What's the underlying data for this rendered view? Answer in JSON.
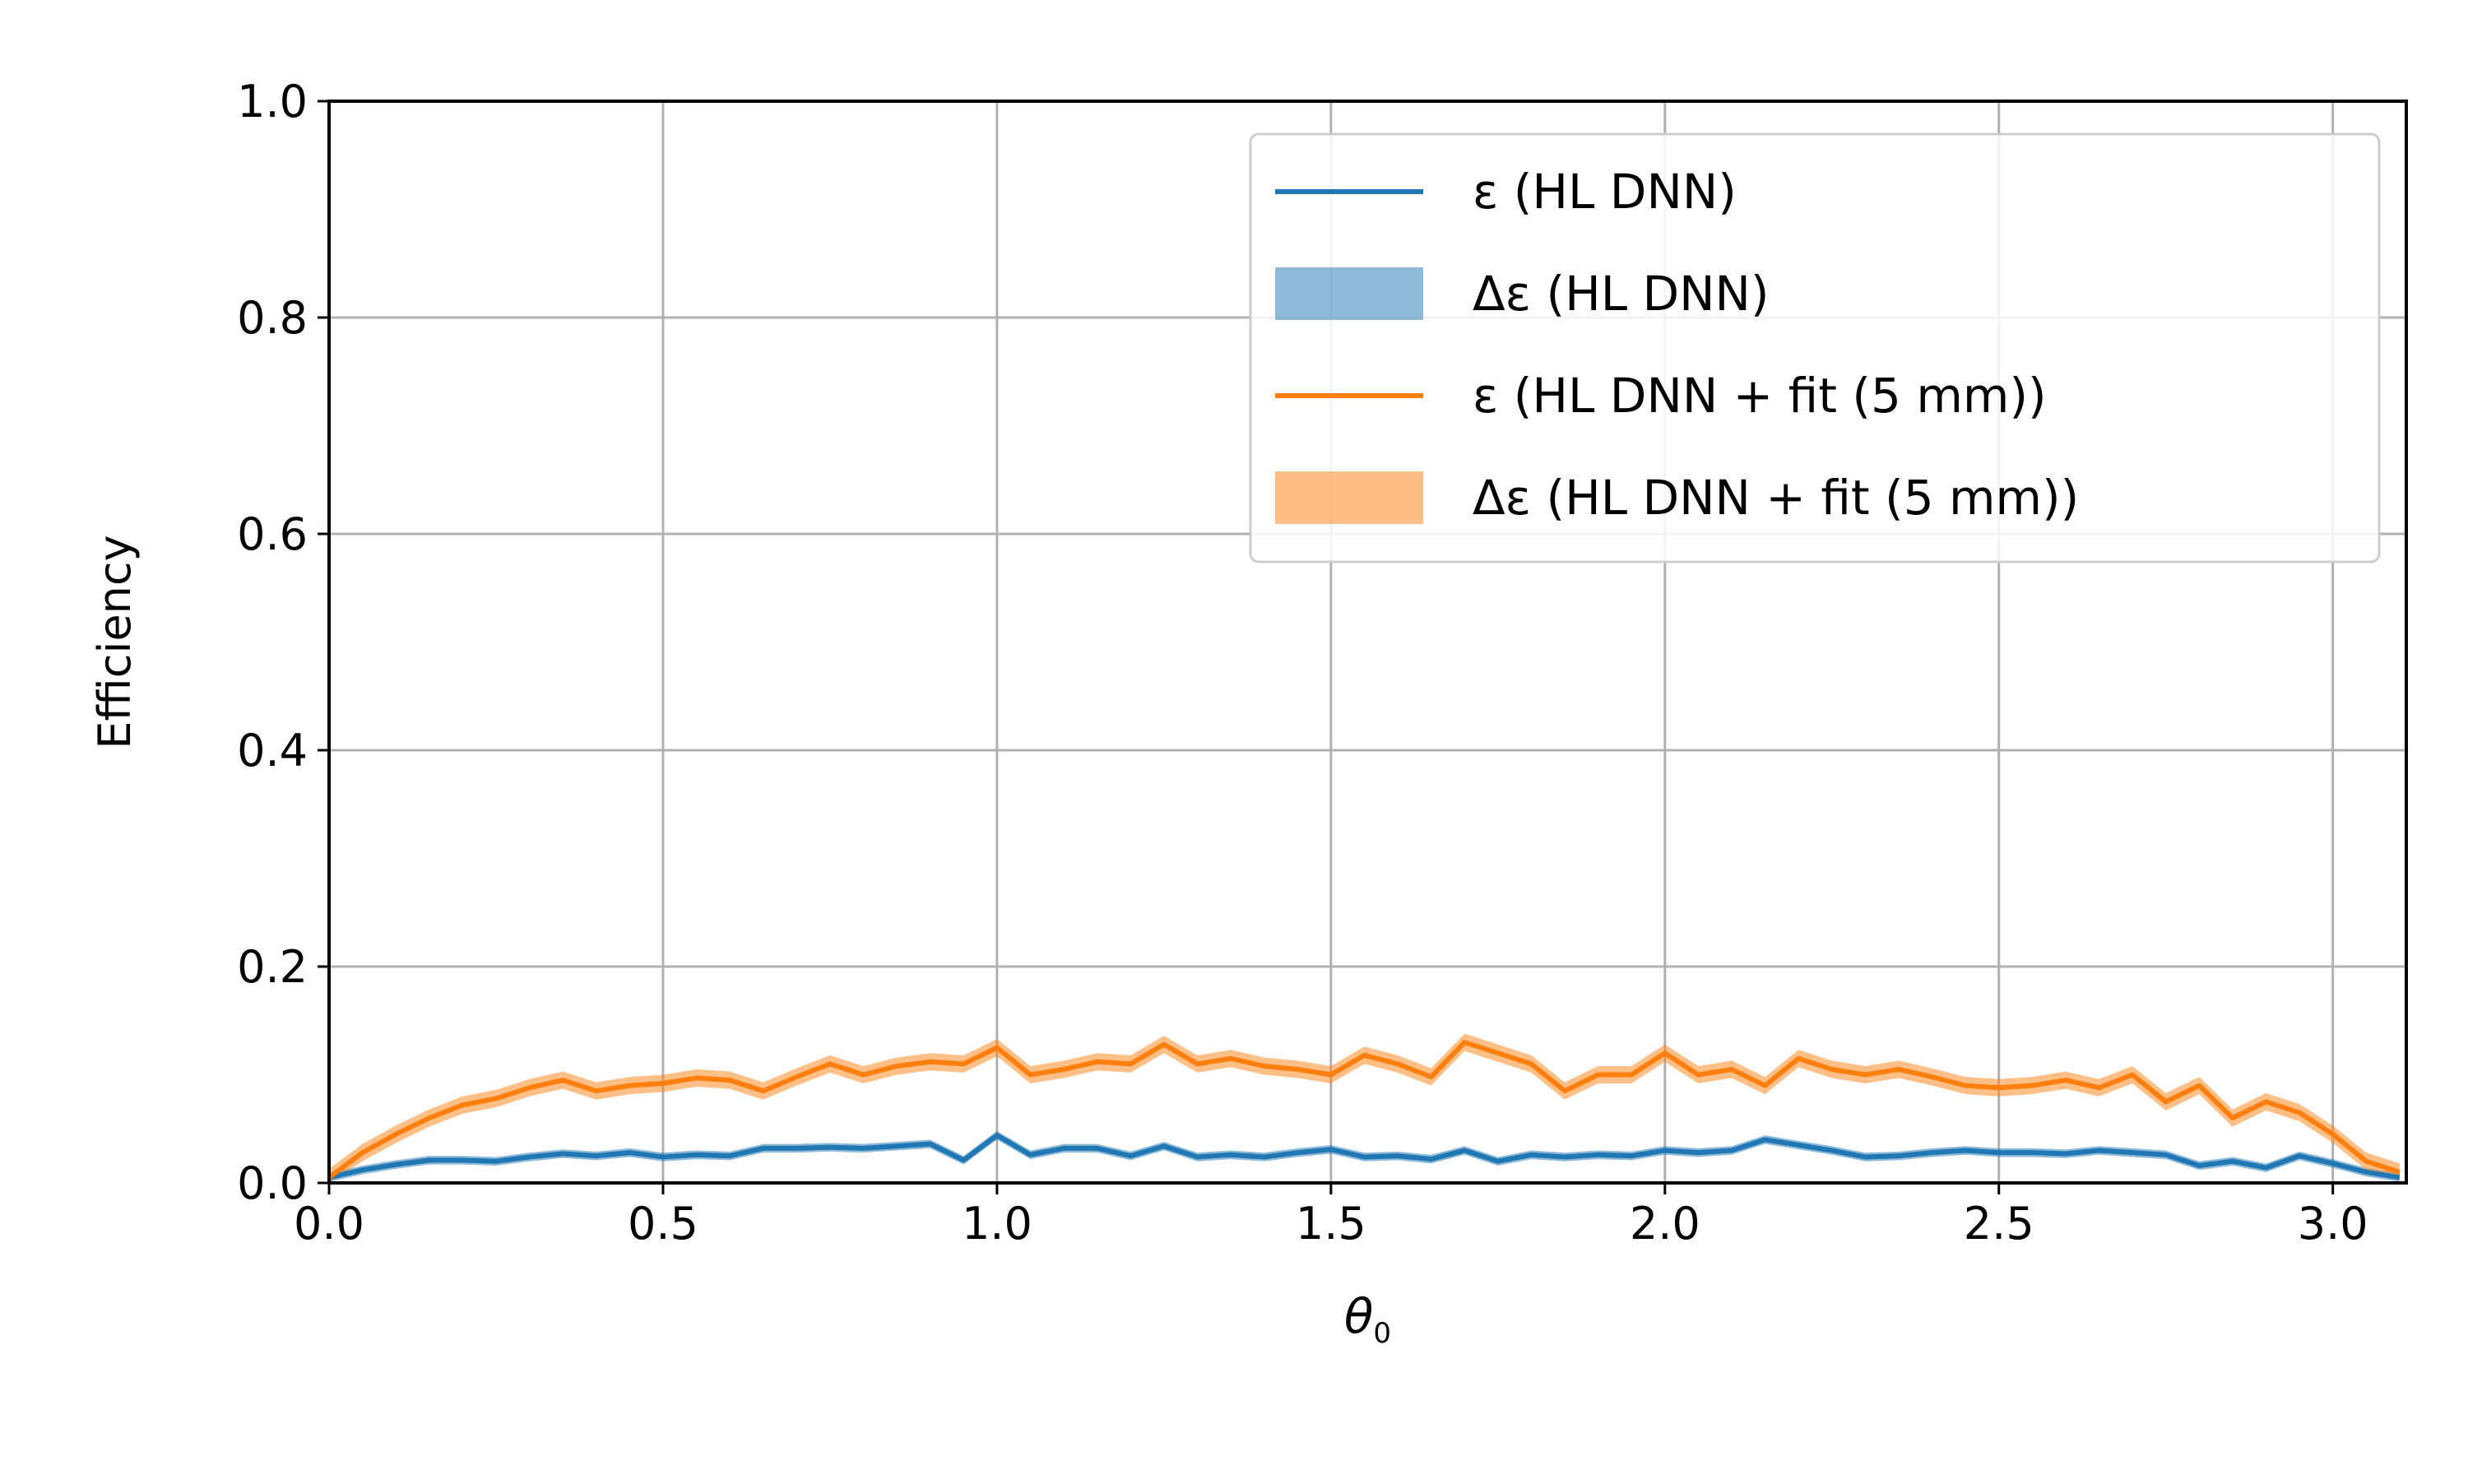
{
  "chart_data": {
    "type": "line",
    "xlabel": "θ",
    "xlabel_sub": "0",
    "ylabel": "Efficiency",
    "xlim": [
      0.0,
      3.11
    ],
    "ylim": [
      0.0,
      1.0
    ],
    "xticks": [
      0.0,
      0.5,
      1.0,
      1.5,
      2.0,
      2.5,
      3.0
    ],
    "xtick_labels": [
      "0.0",
      "0.5",
      "1.0",
      "1.5",
      "2.0",
      "2.5",
      "3.0"
    ],
    "yticks": [
      0.0,
      0.2,
      0.4,
      0.6,
      0.8,
      1.0
    ],
    "ytick_labels": [
      "0.0",
      "0.2",
      "0.4",
      "0.6",
      "0.8",
      "1.0"
    ],
    "grid": true,
    "legend_position": "top-right",
    "legend": [
      {
        "label": "ε (HL DNN)",
        "kind": "line",
        "color": "#1f77b4"
      },
      {
        "label": "Δε (HL DNN)",
        "kind": "band",
        "color": "#1f77b4"
      },
      {
        "label": "ε (HL DNN + fit (5 mm))",
        "kind": "line",
        "color": "#ff7f0e"
      },
      {
        "label": "Δε (HL DNN + fit (5 mm))",
        "kind": "band",
        "color": "#ff7f0e"
      }
    ],
    "series": [
      {
        "name": "ε (HL DNN)",
        "color": "#1f77b4",
        "band": 0.004,
        "x": [
          0.0,
          0.05,
          0.1,
          0.15,
          0.2,
          0.25,
          0.3,
          0.35,
          0.4,
          0.45,
          0.5,
          0.55,
          0.6,
          0.65,
          0.7,
          0.75,
          0.8,
          0.85,
          0.9,
          0.95,
          1.0,
          1.05,
          1.1,
          1.15,
          1.2,
          1.25,
          1.3,
          1.35,
          1.4,
          1.45,
          1.5,
          1.55,
          1.6,
          1.65,
          1.7,
          1.75,
          1.8,
          1.85,
          1.9,
          1.95,
          2.0,
          2.05,
          2.1,
          2.15,
          2.2,
          2.25,
          2.3,
          2.35,
          2.4,
          2.45,
          2.5,
          2.55,
          2.6,
          2.65,
          2.7,
          2.75,
          2.8,
          2.85,
          2.9,
          2.95,
          3.0,
          3.05,
          3.1
        ],
        "y": [
          0.005,
          0.012,
          0.017,
          0.021,
          0.021,
          0.02,
          0.024,
          0.027,
          0.025,
          0.028,
          0.024,
          0.026,
          0.025,
          0.032,
          0.032,
          0.033,
          0.032,
          0.034,
          0.036,
          0.021,
          0.044,
          0.026,
          0.032,
          0.032,
          0.025,
          0.034,
          0.024,
          0.026,
          0.024,
          0.028,
          0.031,
          0.024,
          0.025,
          0.022,
          0.03,
          0.02,
          0.026,
          0.024,
          0.026,
          0.025,
          0.03,
          0.028,
          0.03,
          0.04,
          0.035,
          0.03,
          0.024,
          0.025,
          0.028,
          0.03,
          0.028,
          0.028,
          0.027,
          0.03,
          0.028,
          0.026,
          0.016,
          0.02,
          0.014,
          0.025,
          0.018,
          0.01,
          0.005
        ]
      },
      {
        "name": "ε (HL DNN + fit (5 mm))",
        "color": "#ff7f0e",
        "band": 0.008,
        "x": [
          0.0,
          0.05,
          0.1,
          0.15,
          0.2,
          0.25,
          0.3,
          0.35,
          0.4,
          0.45,
          0.5,
          0.55,
          0.6,
          0.65,
          0.7,
          0.75,
          0.8,
          0.85,
          0.9,
          0.95,
          1.0,
          1.05,
          1.1,
          1.15,
          1.2,
          1.25,
          1.3,
          1.35,
          1.4,
          1.45,
          1.5,
          1.55,
          1.6,
          1.65,
          1.7,
          1.75,
          1.8,
          1.85,
          1.9,
          1.95,
          2.0,
          2.05,
          2.1,
          2.15,
          2.2,
          2.25,
          2.3,
          2.35,
          2.4,
          2.45,
          2.5,
          2.55,
          2.6,
          2.65,
          2.7,
          2.75,
          2.8,
          2.85,
          2.9,
          2.95,
          3.0,
          3.05,
          3.1
        ],
        "y": [
          0.005,
          0.028,
          0.045,
          0.06,
          0.072,
          0.078,
          0.088,
          0.095,
          0.085,
          0.09,
          0.092,
          0.097,
          0.095,
          0.085,
          0.098,
          0.11,
          0.1,
          0.108,
          0.112,
          0.11,
          0.125,
          0.1,
          0.105,
          0.112,
          0.11,
          0.128,
          0.11,
          0.115,
          0.108,
          0.105,
          0.1,
          0.118,
          0.11,
          0.098,
          0.13,
          0.12,
          0.11,
          0.085,
          0.1,
          0.1,
          0.12,
          0.1,
          0.105,
          0.09,
          0.115,
          0.105,
          0.1,
          0.105,
          0.098,
          0.09,
          0.088,
          0.09,
          0.095,
          0.088,
          0.1,
          0.075,
          0.09,
          0.06,
          0.075,
          0.065,
          0.045,
          0.02,
          0.01
        ]
      }
    ]
  }
}
